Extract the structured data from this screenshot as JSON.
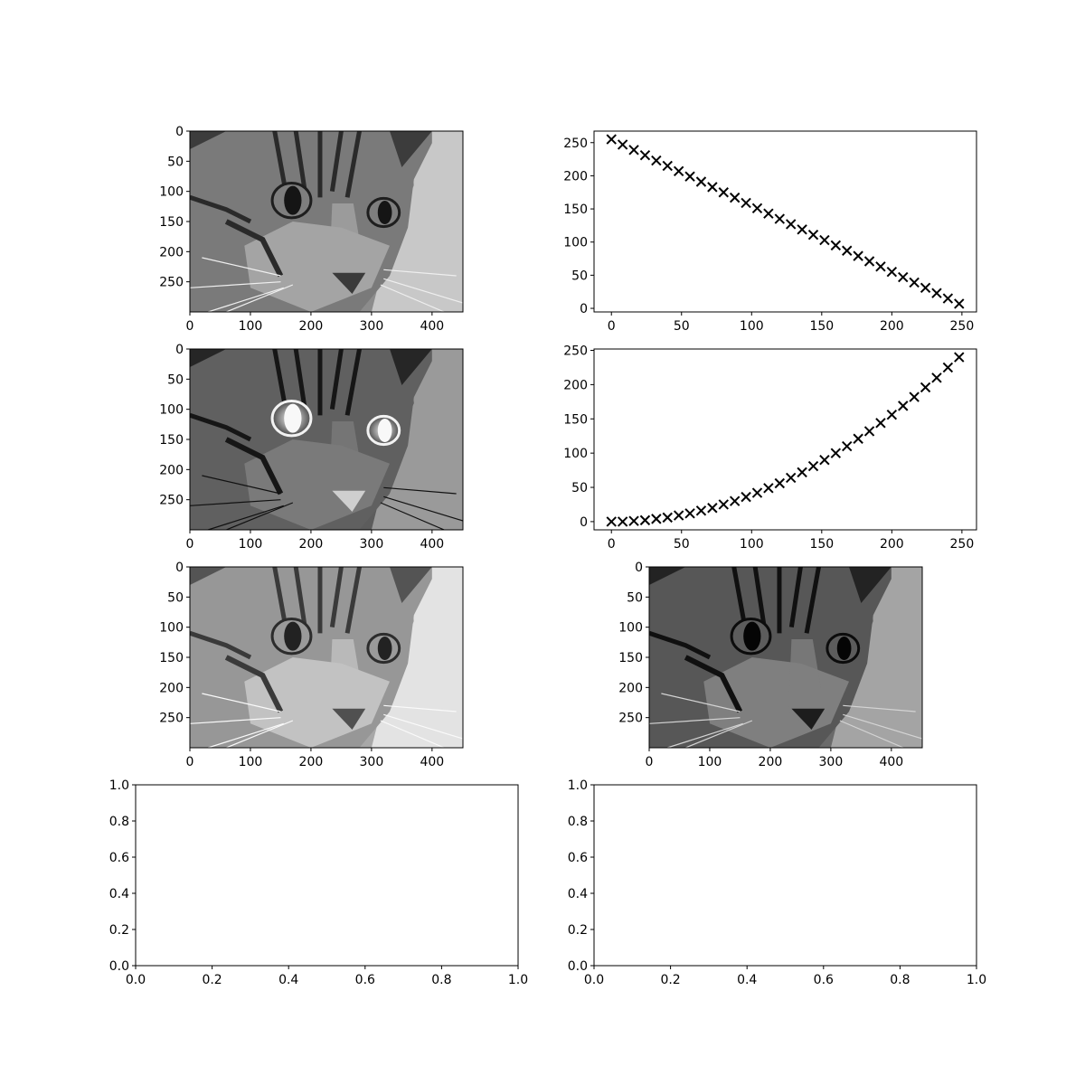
{
  "chart_data": [
    {
      "type": "image",
      "content": "grayscale-cat-photo",
      "variant": "original",
      "xlim": [
        0,
        451
      ],
      "ylim": [
        300,
        0
      ],
      "xticks": [
        0,
        100,
        200,
        300,
        400
      ],
      "yticks": [
        0,
        50,
        100,
        150,
        200,
        250
      ]
    },
    {
      "type": "scatter",
      "marker": "x",
      "color": "#000000",
      "x": [
        0,
        8,
        16,
        24,
        32,
        40,
        48,
        56,
        64,
        72,
        80,
        88,
        96,
        104,
        112,
        120,
        128,
        136,
        144,
        152,
        160,
        168,
        176,
        184,
        192,
        200,
        208,
        216,
        224,
        232,
        240,
        248
      ],
      "y": [
        255,
        247,
        239,
        231,
        223,
        215,
        207,
        199,
        191,
        183,
        175,
        167,
        159,
        151,
        143,
        135,
        127,
        119,
        111,
        103,
        95,
        87,
        79,
        71,
        63,
        55,
        47,
        39,
        31,
        23,
        15,
        7
      ],
      "xlim": [
        -12.4,
        260.4
      ],
      "ylim": [
        -5.4,
        267.4
      ],
      "xticks": [
        0,
        50,
        100,
        150,
        200,
        250
      ],
      "yticks": [
        0,
        50,
        100,
        150,
        200,
        250
      ]
    },
    {
      "type": "image",
      "content": "grayscale-cat-photo",
      "variant": "contrast-enhanced",
      "xlim": [
        0,
        451
      ],
      "ylim": [
        300,
        0
      ],
      "xticks": [
        0,
        100,
        200,
        300,
        400
      ],
      "yticks": [
        0,
        50,
        100,
        150,
        200,
        250
      ]
    },
    {
      "type": "scatter",
      "marker": "x",
      "color": "#000000",
      "x": [
        0,
        8,
        16,
        24,
        32,
        40,
        48,
        56,
        64,
        72,
        80,
        88,
        96,
        104,
        112,
        120,
        128,
        136,
        144,
        152,
        160,
        168,
        176,
        184,
        192,
        200,
        208,
        216,
        224,
        232,
        240,
        248
      ],
      "y": [
        0,
        0,
        1,
        2,
        4,
        6,
        9,
        12,
        16,
        20,
        25,
        30,
        36,
        42,
        49,
        56,
        64,
        72,
        81,
        90,
        100,
        110,
        121,
        132,
        144,
        156,
        169,
        182,
        196,
        210,
        225,
        240
      ],
      "xlim": [
        -12.4,
        260.4
      ],
      "ylim": [
        -12,
        252
      ],
      "xticks": [
        0,
        50,
        100,
        150,
        200,
        250
      ],
      "yticks": [
        0,
        50,
        100,
        150,
        200,
        250
      ]
    },
    {
      "type": "image",
      "content": "grayscale-cat-photo",
      "variant": "brightened",
      "xlim": [
        0,
        451
      ],
      "ylim": [
        300,
        0
      ],
      "xticks": [
        0,
        100,
        200,
        300,
        400
      ],
      "yticks": [
        0,
        50,
        100,
        150,
        200,
        250
      ]
    },
    {
      "type": "image",
      "content": "grayscale-cat-photo",
      "variant": "darkened",
      "xlim": [
        0,
        451
      ],
      "ylim": [
        300,
        0
      ],
      "xticks": [
        0,
        100,
        200,
        300,
        400
      ],
      "yticks": [
        0,
        50,
        100,
        150,
        200,
        250
      ]
    },
    {
      "type": "empty",
      "xlim": [
        0,
        1
      ],
      "ylim": [
        0,
        1
      ],
      "xticks": [
        0.0,
        0.2,
        0.4,
        0.6,
        0.8,
        1.0
      ],
      "yticks": [
        0.0,
        0.2,
        0.4,
        0.6,
        0.8,
        1.0
      ]
    },
    {
      "type": "empty",
      "xlim": [
        0,
        1
      ],
      "ylim": [
        0,
        1
      ],
      "xticks": [
        0.0,
        0.2,
        0.4,
        0.6,
        0.8,
        1.0
      ],
      "yticks": [
        0.0,
        0.2,
        0.4,
        0.6,
        0.8,
        1.0
      ]
    }
  ]
}
